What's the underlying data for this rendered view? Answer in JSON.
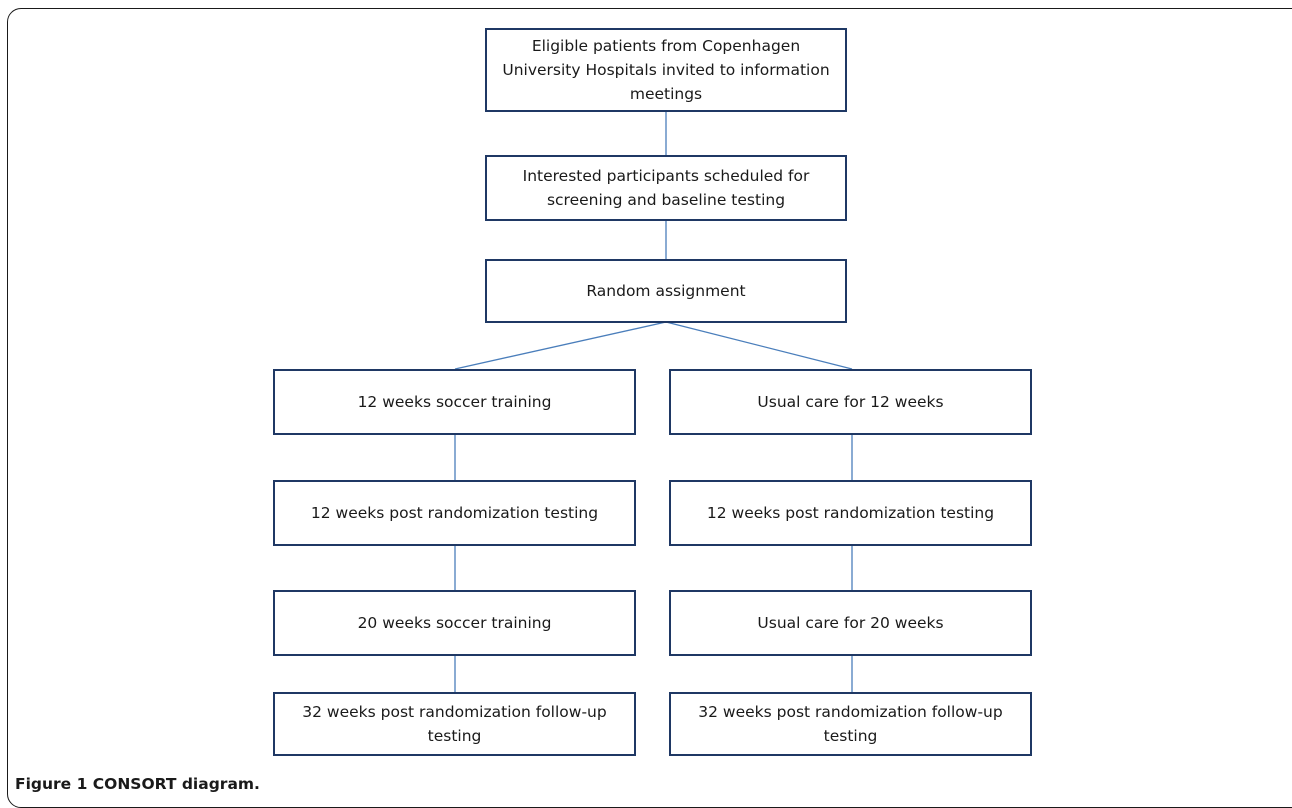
{
  "diagram": {
    "boxes": {
      "eligible": "Eligible patients from Copenhagen\nUniversity Hospitals invited to information\nmeetings",
      "screening": "Interested participants scheduled for\nscreening and baseline testing",
      "random": "Random assignment",
      "soccer12": "12 weeks soccer training",
      "usual12": "Usual care for 12 weeks",
      "postTestLeft": "12 weeks post randomization testing",
      "postTestRight": "12 weeks post randomization testing",
      "soccer20": "20 weeks soccer training",
      "usual20": "Usual care  for 20 weeks",
      "followUpLeft": "32 weeks post randomization follow-up\ntesting",
      "followUpRight": "32 weeks post randomization follow-up\ntesting"
    },
    "colors": {
      "box_border": "#1f3864",
      "connector": "#4a7ebb"
    }
  },
  "caption": "Figure 1 CONSORT diagram."
}
